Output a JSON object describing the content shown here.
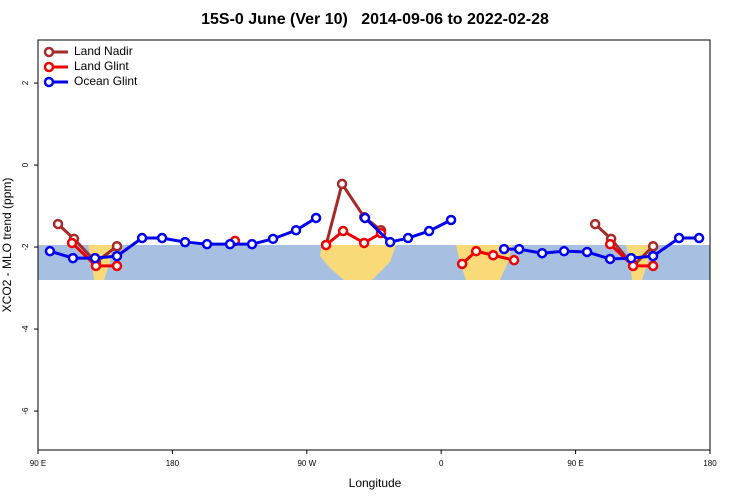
{
  "chart_data": {
    "type": "line",
    "title": "15S-0 June (Ver 10)   2014-09-06 to 2022-02-28",
    "xlabel": "Longitude",
    "ylabel": "XCO2 - MLO trend (ppm)",
    "xlim": [
      90,
      540
    ],
    "ylim": [
      -6.95,
      3.05
    ],
    "xticks": [
      {
        "value": 90,
        "label": "90 E"
      },
      180,
      {
        "value": 270,
        "label": "90 W"
      },
      {
        "value": 360,
        "label": "0"
      },
      {
        "value": 450,
        "label": "90 E"
      },
      {
        "value": 540,
        "label": "180"
      }
    ],
    "yticks": [
      -6,
      -4,
      -2,
      0,
      2
    ],
    "legend": "top-left",
    "series": [
      {
        "name": "Land Nadir",
        "color": "#a52a2a",
        "x": [
          103.4,
          114.1,
          128.8,
          142.9,
          null,
          282.9,
          293.6,
          308.4,
          319.7,
          null,
          463.1,
          473.8,
          488.5,
          501.9
        ],
        "values": [
          -1.44,
          -1.8,
          -2.37,
          -1.98,
          null,
          -1.95,
          -0.46,
          -1.27,
          -1.59,
          null,
          -1.44,
          -1.8,
          -2.46,
          -1.98
        ]
      },
      {
        "name": "Land Glint",
        "color": "#ee0000",
        "x": [
          112.8,
          128.8,
          142.9,
          null,
          221.9,
          null,
          282.9,
          294.3,
          308.4,
          319.7,
          null,
          374.0,
          383.4,
          394.8,
          408.8,
          null,
          473.1,
          488.5,
          501.9
        ],
        "values": [
          -1.9,
          -2.46,
          -2.46,
          null,
          -1.85,
          null,
          -1.95,
          -1.61,
          -1.9,
          -1.66,
          null,
          -2.41,
          -2.1,
          -2.2,
          -2.32,
          null,
          -1.93,
          -2.46,
          -2.46
        ]
      },
      {
        "name": "Ocean Glint",
        "color": "#0000ee",
        "x": [
          98.0,
          113.4,
          128.2,
          142.9,
          159.7,
          173.1,
          188.5,
          203.2,
          218.6,
          233.3,
          247.4,
          262.8,
          276.2,
          null,
          309.0,
          325.8,
          337.8,
          351.9,
          366.6,
          null,
          402.1,
          412.2,
          427.6,
          442.3,
          457.7,
          473.1,
          487.2,
          501.9,
          519.3,
          532.7
        ],
        "values": [
          -2.1,
          -2.27,
          -2.27,
          -2.22,
          -1.78,
          -1.78,
          -1.88,
          -1.93,
          -1.93,
          -1.93,
          -1.8,
          -1.59,
          -1.29,
          null,
          -1.29,
          -1.88,
          -1.78,
          -1.61,
          -1.34,
          null,
          -2.05,
          -2.05,
          -2.15,
          -2.1,
          -2.12,
          -2.29,
          -2.27,
          -2.22,
          -1.78,
          -1.78
        ]
      }
    ]
  }
}
